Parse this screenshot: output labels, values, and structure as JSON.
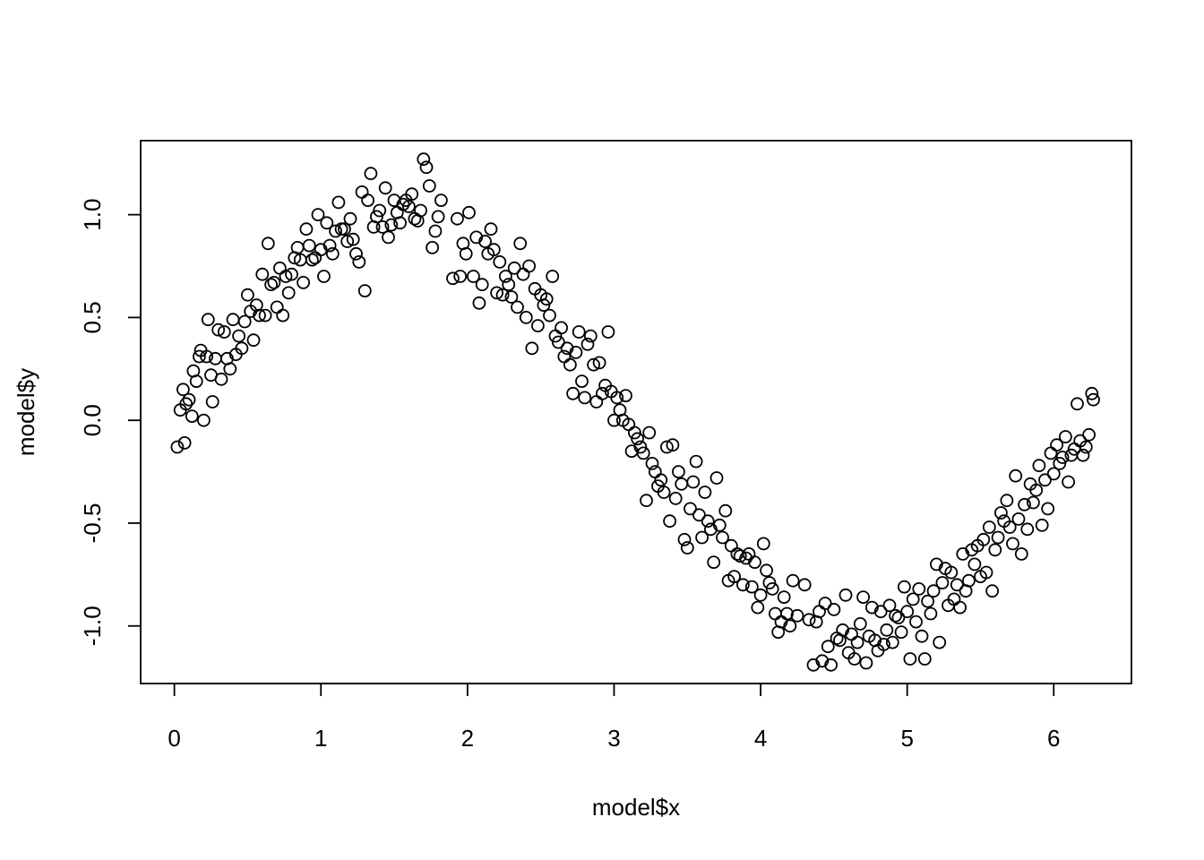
{
  "chart_data": {
    "type": "scatter",
    "title": "",
    "xlabel": "model$x",
    "ylabel": "model$y",
    "xlim": [
      -0.23,
      6.53
    ],
    "ylim": [
      -1.28,
      1.36
    ],
    "xticks": [
      0,
      1,
      2,
      3,
      4,
      5,
      6
    ],
    "yticks": [
      -1.0,
      -0.5,
      0.0,
      0.5,
      1.0
    ],
    "xtick_labels": [
      "0",
      "1",
      "2",
      "3",
      "4",
      "5",
      "6"
    ],
    "ytick_labels": [
      "-1.0",
      "-0.5",
      "0.0",
      "0.5",
      "1.0"
    ],
    "grid": false,
    "marker": "open-circle",
    "colors": {
      "points": "#000000",
      "frame": "#000000",
      "background": "#ffffff"
    },
    "series": [
      {
        "points": [
          [
            0.02,
            -0.13
          ],
          [
            0.04,
            0.05
          ],
          [
            0.06,
            0.15
          ],
          [
            0.07,
            -0.11
          ],
          [
            0.08,
            0.08
          ],
          [
            0.1,
            0.1
          ],
          [
            0.12,
            0.02
          ],
          [
            0.13,
            0.24
          ],
          [
            0.15,
            0.19
          ],
          [
            0.17,
            0.31
          ],
          [
            0.18,
            0.34
          ],
          [
            0.2,
            0.0
          ],
          [
            0.22,
            0.31
          ],
          [
            0.23,
            0.49
          ],
          [
            0.25,
            0.22
          ],
          [
            0.26,
            0.09
          ],
          [
            0.28,
            0.3
          ],
          [
            0.3,
            0.44
          ],
          [
            0.32,
            0.2
          ],
          [
            0.34,
            0.43
          ],
          [
            0.36,
            0.3
          ],
          [
            0.38,
            0.25
          ],
          [
            0.4,
            0.49
          ],
          [
            0.42,
            0.32
          ],
          [
            0.44,
            0.41
          ],
          [
            0.46,
            0.35
          ],
          [
            0.48,
            0.48
          ],
          [
            0.5,
            0.61
          ],
          [
            0.52,
            0.53
          ],
          [
            0.54,
            0.39
          ],
          [
            0.56,
            0.56
          ],
          [
            0.58,
            0.51
          ],
          [
            0.6,
            0.71
          ],
          [
            0.62,
            0.51
          ],
          [
            0.64,
            0.86
          ],
          [
            0.66,
            0.66
          ],
          [
            0.68,
            0.67
          ],
          [
            0.7,
            0.55
          ],
          [
            0.72,
            0.74
          ],
          [
            0.74,
            0.51
          ],
          [
            0.76,
            0.7
          ],
          [
            0.78,
            0.62
          ],
          [
            0.8,
            0.71
          ],
          [
            0.82,
            0.79
          ],
          [
            0.84,
            0.84
          ],
          [
            0.86,
            0.78
          ],
          [
            0.88,
            0.67
          ],
          [
            0.9,
            0.93
          ],
          [
            0.92,
            0.85
          ],
          [
            0.94,
            0.78
          ],
          [
            0.96,
            0.79
          ],
          [
            0.98,
            1.0
          ],
          [
            1.0,
            0.83
          ],
          [
            1.02,
            0.7
          ],
          [
            1.04,
            0.96
          ],
          [
            1.06,
            0.85
          ],
          [
            1.08,
            0.81
          ],
          [
            1.1,
            0.92
          ],
          [
            1.12,
            1.06
          ],
          [
            1.14,
            0.93
          ],
          [
            1.16,
            0.93
          ],
          [
            1.18,
            0.87
          ],
          [
            1.2,
            0.98
          ],
          [
            1.22,
            0.88
          ],
          [
            1.24,
            0.81
          ],
          [
            1.26,
            0.77
          ],
          [
            1.28,
            1.11
          ],
          [
            1.3,
            0.63
          ],
          [
            1.32,
            1.07
          ],
          [
            1.34,
            1.2
          ],
          [
            1.36,
            0.94
          ],
          [
            1.38,
            0.99
          ],
          [
            1.4,
            1.02
          ],
          [
            1.42,
            0.94
          ],
          [
            1.44,
            1.13
          ],
          [
            1.46,
            0.89
          ],
          [
            1.48,
            0.95
          ],
          [
            1.5,
            1.07
          ],
          [
            1.52,
            1.01
          ],
          [
            1.54,
            0.96
          ],
          [
            1.56,
            1.05
          ],
          [
            1.58,
            1.07
          ],
          [
            1.6,
            1.04
          ],
          [
            1.62,
            1.1
          ],
          [
            1.64,
            0.98
          ],
          [
            1.66,
            0.97
          ],
          [
            1.68,
            1.02
          ],
          [
            1.7,
            1.27
          ],
          [
            1.72,
            1.23
          ],
          [
            1.74,
            1.14
          ],
          [
            1.76,
            0.84
          ],
          [
            1.78,
            0.92
          ],
          [
            1.8,
            0.99
          ],
          [
            1.82,
            1.07
          ],
          [
            1.9,
            0.69
          ],
          [
            1.93,
            0.98
          ],
          [
            1.95,
            0.7
          ],
          [
            1.97,
            0.86
          ],
          [
            1.99,
            0.81
          ],
          [
            2.01,
            1.01
          ],
          [
            2.04,
            0.7
          ],
          [
            2.06,
            0.89
          ],
          [
            2.08,
            0.57
          ],
          [
            2.1,
            0.66
          ],
          [
            2.12,
            0.87
          ],
          [
            2.14,
            0.81
          ],
          [
            2.16,
            0.93
          ],
          [
            2.18,
            0.83
          ],
          [
            2.2,
            0.62
          ],
          [
            2.22,
            0.77
          ],
          [
            2.24,
            0.61
          ],
          [
            2.26,
            0.7
          ],
          [
            2.28,
            0.66
          ],
          [
            2.3,
            0.6
          ],
          [
            2.32,
            0.74
          ],
          [
            2.34,
            0.55
          ],
          [
            2.36,
            0.86
          ],
          [
            2.38,
            0.71
          ],
          [
            2.4,
            0.5
          ],
          [
            2.42,
            0.75
          ],
          [
            2.44,
            0.35
          ],
          [
            2.46,
            0.64
          ],
          [
            2.48,
            0.46
          ],
          [
            2.5,
            0.61
          ],
          [
            2.52,
            0.56
          ],
          [
            2.54,
            0.59
          ],
          [
            2.56,
            0.51
          ],
          [
            2.58,
            0.7
          ],
          [
            2.6,
            0.41
          ],
          [
            2.62,
            0.38
          ],
          [
            2.64,
            0.45
          ],
          [
            2.66,
            0.31
          ],
          [
            2.68,
            0.35
          ],
          [
            2.7,
            0.27
          ],
          [
            2.72,
            0.13
          ],
          [
            2.74,
            0.33
          ],
          [
            2.76,
            0.43
          ],
          [
            2.78,
            0.19
          ],
          [
            2.8,
            0.11
          ],
          [
            2.82,
            0.37
          ],
          [
            2.84,
            0.41
          ],
          [
            2.86,
            0.27
          ],
          [
            2.88,
            0.09
          ],
          [
            2.9,
            0.28
          ],
          [
            2.92,
            0.13
          ],
          [
            2.94,
            0.17
          ],
          [
            2.96,
            0.43
          ],
          [
            2.98,
            0.14
          ],
          [
            3.0,
            0.0
          ],
          [
            3.02,
            0.11
          ],
          [
            3.04,
            0.05
          ],
          [
            3.06,
            0.0
          ],
          [
            3.08,
            0.12
          ],
          [
            3.1,
            -0.02
          ],
          [
            3.12,
            -0.15
          ],
          [
            3.14,
            -0.06
          ],
          [
            3.16,
            -0.09
          ],
          [
            3.18,
            -0.13
          ],
          [
            3.2,
            -0.16
          ],
          [
            3.22,
            -0.39
          ],
          [
            3.24,
            -0.06
          ],
          [
            3.26,
            -0.21
          ],
          [
            3.28,
            -0.25
          ],
          [
            3.3,
            -0.32
          ],
          [
            3.32,
            -0.29
          ],
          [
            3.34,
            -0.35
          ],
          [
            3.36,
            -0.13
          ],
          [
            3.38,
            -0.49
          ],
          [
            3.4,
            -0.12
          ],
          [
            3.42,
            -0.38
          ],
          [
            3.44,
            -0.25
          ],
          [
            3.46,
            -0.31
          ],
          [
            3.48,
            -0.58
          ],
          [
            3.5,
            -0.62
          ],
          [
            3.52,
            -0.43
          ],
          [
            3.54,
            -0.3
          ],
          [
            3.56,
            -0.2
          ],
          [
            3.58,
            -0.46
          ],
          [
            3.6,
            -0.57
          ],
          [
            3.62,
            -0.35
          ],
          [
            3.64,
            -0.49
          ],
          [
            3.66,
            -0.53
          ],
          [
            3.68,
            -0.69
          ],
          [
            3.7,
            -0.28
          ],
          [
            3.72,
            -0.51
          ],
          [
            3.74,
            -0.57
          ],
          [
            3.76,
            -0.44
          ],
          [
            3.78,
            -0.78
          ],
          [
            3.8,
            -0.61
          ],
          [
            3.82,
            -0.76
          ],
          [
            3.84,
            -0.65
          ],
          [
            3.86,
            -0.66
          ],
          [
            3.88,
            -0.8
          ],
          [
            3.9,
            -0.67
          ],
          [
            3.92,
            -0.65
          ],
          [
            3.94,
            -0.81
          ],
          [
            3.96,
            -0.69
          ],
          [
            3.98,
            -0.91
          ],
          [
            4.0,
            -0.85
          ],
          [
            4.02,
            -0.6
          ],
          [
            4.04,
            -0.73
          ],
          [
            4.06,
            -0.79
          ],
          [
            4.08,
            -0.82
          ],
          [
            4.1,
            -0.94
          ],
          [
            4.12,
            -1.03
          ],
          [
            4.14,
            -0.98
          ],
          [
            4.16,
            -0.86
          ],
          [
            4.18,
            -0.94
          ],
          [
            4.2,
            -1.0
          ],
          [
            4.22,
            -0.78
          ],
          [
            4.25,
            -0.95
          ],
          [
            4.3,
            -0.8
          ],
          [
            4.33,
            -0.97
          ],
          [
            4.36,
            -1.19
          ],
          [
            4.38,
            -0.98
          ],
          [
            4.4,
            -0.93
          ],
          [
            4.42,
            -1.17
          ],
          [
            4.44,
            -0.89
          ],
          [
            4.46,
            -1.1
          ],
          [
            4.48,
            -1.19
          ],
          [
            4.5,
            -0.92
          ],
          [
            4.52,
            -1.06
          ],
          [
            4.54,
            -1.07
          ],
          [
            4.56,
            -1.02
          ],
          [
            4.58,
            -0.85
          ],
          [
            4.6,
            -1.13
          ],
          [
            4.62,
            -1.04
          ],
          [
            4.64,
            -1.16
          ],
          [
            4.66,
            -1.08
          ],
          [
            4.68,
            -0.99
          ],
          [
            4.7,
            -0.86
          ],
          [
            4.72,
            -1.18
          ],
          [
            4.74,
            -1.05
          ],
          [
            4.76,
            -0.91
          ],
          [
            4.78,
            -1.07
          ],
          [
            4.8,
            -1.12
          ],
          [
            4.82,
            -0.93
          ],
          [
            4.84,
            -1.09
          ],
          [
            4.86,
            -1.02
          ],
          [
            4.88,
            -0.9
          ],
          [
            4.9,
            -1.08
          ],
          [
            4.92,
            -0.95
          ],
          [
            4.94,
            -0.96
          ],
          [
            4.96,
            -1.03
          ],
          [
            4.98,
            -0.81
          ],
          [
            5.0,
            -0.93
          ],
          [
            5.02,
            -1.16
          ],
          [
            5.04,
            -0.87
          ],
          [
            5.06,
            -0.98
          ],
          [
            5.08,
            -0.82
          ],
          [
            5.1,
            -1.05
          ],
          [
            5.12,
            -1.16
          ],
          [
            5.14,
            -0.88
          ],
          [
            5.16,
            -0.94
          ],
          [
            5.18,
            -0.83
          ],
          [
            5.2,
            -0.7
          ],
          [
            5.22,
            -1.08
          ],
          [
            5.24,
            -0.79
          ],
          [
            5.26,
            -0.72
          ],
          [
            5.28,
            -0.9
          ],
          [
            5.3,
            -0.74
          ],
          [
            5.32,
            -0.87
          ],
          [
            5.34,
            -0.8
          ],
          [
            5.36,
            -0.91
          ],
          [
            5.38,
            -0.65
          ],
          [
            5.4,
            -0.83
          ],
          [
            5.42,
            -0.78
          ],
          [
            5.44,
            -0.63
          ],
          [
            5.46,
            -0.7
          ],
          [
            5.48,
            -0.61
          ],
          [
            5.5,
            -0.76
          ],
          [
            5.52,
            -0.58
          ],
          [
            5.54,
            -0.74
          ],
          [
            5.56,
            -0.52
          ],
          [
            5.58,
            -0.83
          ],
          [
            5.6,
            -0.63
          ],
          [
            5.62,
            -0.57
          ],
          [
            5.64,
            -0.45
          ],
          [
            5.66,
            -0.49
          ],
          [
            5.68,
            -0.39
          ],
          [
            5.7,
            -0.52
          ],
          [
            5.72,
            -0.6
          ],
          [
            5.74,
            -0.27
          ],
          [
            5.76,
            -0.48
          ],
          [
            5.78,
            -0.65
          ],
          [
            5.8,
            -0.41
          ],
          [
            5.82,
            -0.53
          ],
          [
            5.84,
            -0.31
          ],
          [
            5.86,
            -0.4
          ],
          [
            5.88,
            -0.34
          ],
          [
            5.9,
            -0.22
          ],
          [
            5.92,
            -0.51
          ],
          [
            5.94,
            -0.29
          ],
          [
            5.96,
            -0.43
          ],
          [
            5.98,
            -0.16
          ],
          [
            6.0,
            -0.26
          ],
          [
            6.02,
            -0.12
          ],
          [
            6.04,
            -0.21
          ],
          [
            6.06,
            -0.18
          ],
          [
            6.08,
            -0.08
          ],
          [
            6.1,
            -0.3
          ],
          [
            6.12,
            -0.17
          ],
          [
            6.14,
            -0.14
          ],
          [
            6.16,
            0.08
          ],
          [
            6.18,
            -0.1
          ],
          [
            6.2,
            -0.17
          ],
          [
            6.22,
            -0.13
          ],
          [
            6.24,
            -0.07
          ],
          [
            6.26,
            0.13
          ],
          [
            6.27,
            0.1
          ]
        ]
      }
    ]
  }
}
